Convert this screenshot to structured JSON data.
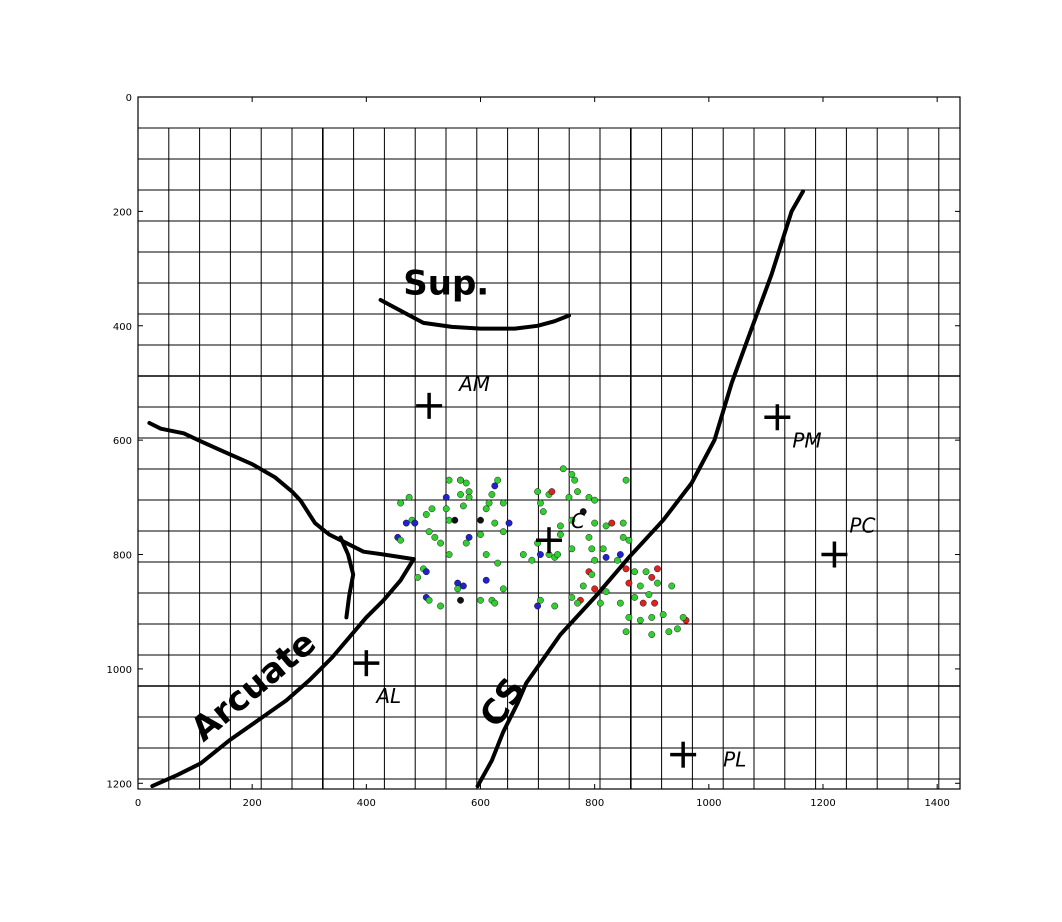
{
  "axes": {
    "x_ticks": [
      "0",
      "200",
      "400",
      "600",
      "800",
      "1000",
      "1200",
      "1400"
    ],
    "y_ticks": [
      "0",
      "200",
      "400",
      "600",
      "800",
      "1000",
      "1200"
    ],
    "xlim": [
      0,
      1440
    ],
    "ylim": [
      0,
      1210
    ],
    "y_inverted": true,
    "grid": true
  },
  "sulci": [
    {
      "label": "Sup.",
      "points": [
        [
          425,
          355
        ],
        [
          500,
          395
        ],
        [
          550,
          402
        ],
        [
          600,
          405
        ],
        [
          660,
          405
        ],
        [
          700,
          400
        ],
        [
          730,
          392
        ],
        [
          755,
          382
        ]
      ]
    },
    {
      "label": "Arcuate",
      "points": [
        [
          25,
          1205
        ],
        [
          70,
          1185
        ],
        [
          110,
          1165
        ],
        [
          160,
          1125
        ],
        [
          210,
          1090
        ],
        [
          260,
          1055
        ],
        [
          300,
          1020
        ],
        [
          340,
          980
        ],
        [
          370,
          945
        ],
        [
          400,
          910
        ],
        [
          430,
          880
        ],
        [
          460,
          845
        ],
        [
          483,
          808
        ]
      ]
    },
    {
      "label": "",
      "points": [
        [
          20,
          570
        ],
        [
          40,
          580
        ],
        [
          80,
          588
        ],
        [
          110,
          602
        ],
        [
          150,
          620
        ],
        [
          200,
          642
        ],
        [
          240,
          665
        ],
        [
          270,
          690
        ],
        [
          285,
          706
        ],
        [
          310,
          745
        ],
        [
          335,
          765
        ],
        [
          365,
          780
        ],
        [
          395,
          795
        ],
        [
          430,
          800
        ],
        [
          483,
          808
        ]
      ]
    },
    {
      "label": "",
      "points": [
        [
          355,
          770
        ],
        [
          368,
          800
        ],
        [
          377,
          835
        ],
        [
          370,
          872
        ],
        [
          365,
          910
        ]
      ]
    },
    {
      "label": "CS",
      "points": [
        [
          595,
          1205
        ],
        [
          620,
          1160
        ],
        [
          640,
          1110
        ],
        [
          665,
          1060
        ],
        [
          680,
          1025
        ],
        [
          740,
          940
        ],
        [
          800,
          875
        ],
        [
          860,
          805
        ],
        [
          920,
          740
        ],
        [
          970,
          675
        ],
        [
          1010,
          600
        ],
        [
          1040,
          500
        ],
        [
          1075,
          405
        ],
        [
          1110,
          310
        ],
        [
          1145,
          200
        ],
        [
          1165,
          165
        ]
      ]
    }
  ],
  "sulcus_labels": [
    {
      "text": "Sup.",
      "x": 540,
      "y": 345,
      "angle": 0
    },
    {
      "text": "Arcuate",
      "x": 215,
      "y": 1045,
      "angle": -40
    },
    {
      "text": "CS",
      "x": 655,
      "y": 1070,
      "angle": -55
    }
  ],
  "sites": [
    {
      "label": "AM",
      "x": 510,
      "y": 540
    },
    {
      "label": "PM",
      "x": 1120,
      "y": 560
    },
    {
      "label": "C",
      "x": 720,
      "y": 775
    },
    {
      "label": "PC",
      "x": 1220,
      "y": 800
    },
    {
      "label": "AL",
      "x": 400,
      "y": 990
    },
    {
      "label": "PL",
      "x": 955,
      "y": 1150
    }
  ],
  "site_label_offsets": {
    "AM": [
      30,
      -15
    ],
    "PM": [
      15,
      30
    ],
    "C": [
      22,
      -12
    ],
    "PC": [
      15,
      -22
    ],
    "AL": [
      10,
      40
    ],
    "PL": [
      40,
      12
    ]
  },
  "point_colors": {
    "green": "#33cc33",
    "blue": "#2222cc",
    "red": "#dd2222",
    "black": "#111111"
  },
  "points": [
    {
      "x": 475,
      "y": 700,
      "c": "green"
    },
    {
      "x": 460,
      "y": 710,
      "c": "green"
    },
    {
      "x": 480,
      "y": 740,
      "c": "green"
    },
    {
      "x": 485,
      "y": 745,
      "c": "blue"
    },
    {
      "x": 470,
      "y": 745,
      "c": "blue"
    },
    {
      "x": 505,
      "y": 730,
      "c": "green"
    },
    {
      "x": 515,
      "y": 720,
      "c": "green"
    },
    {
      "x": 540,
      "y": 720,
      "c": "green"
    },
    {
      "x": 545,
      "y": 740,
      "c": "green"
    },
    {
      "x": 540,
      "y": 700,
      "c": "blue"
    },
    {
      "x": 555,
      "y": 740,
      "c": "black"
    },
    {
      "x": 565,
      "y": 670,
      "c": "blue"
    },
    {
      "x": 565,
      "y": 670,
      "c": "green"
    },
    {
      "x": 575,
      "y": 675,
      "c": "green"
    },
    {
      "x": 580,
      "y": 690,
      "c": "green"
    },
    {
      "x": 580,
      "y": 700,
      "c": "green"
    },
    {
      "x": 565,
      "y": 695,
      "c": "green"
    },
    {
      "x": 570,
      "y": 715,
      "c": "green"
    },
    {
      "x": 545,
      "y": 670,
      "c": "green"
    },
    {
      "x": 600,
      "y": 740,
      "c": "black"
    },
    {
      "x": 610,
      "y": 720,
      "c": "green"
    },
    {
      "x": 615,
      "y": 710,
      "c": "green"
    },
    {
      "x": 620,
      "y": 695,
      "c": "green"
    },
    {
      "x": 625,
      "y": 680,
      "c": "blue"
    },
    {
      "x": 630,
      "y": 670,
      "c": "green"
    },
    {
      "x": 625,
      "y": 745,
      "c": "green"
    },
    {
      "x": 640,
      "y": 710,
      "c": "green"
    },
    {
      "x": 650,
      "y": 745,
      "c": "blue"
    },
    {
      "x": 640,
      "y": 760,
      "c": "green"
    },
    {
      "x": 600,
      "y": 765,
      "c": "green"
    },
    {
      "x": 455,
      "y": 770,
      "c": "blue"
    },
    {
      "x": 460,
      "y": 775,
      "c": "green"
    },
    {
      "x": 510,
      "y": 760,
      "c": "green"
    },
    {
      "x": 520,
      "y": 770,
      "c": "green"
    },
    {
      "x": 530,
      "y": 780,
      "c": "green"
    },
    {
      "x": 580,
      "y": 770,
      "c": "blue"
    },
    {
      "x": 575,
      "y": 780,
      "c": "green"
    },
    {
      "x": 610,
      "y": 800,
      "c": "green"
    },
    {
      "x": 630,
      "y": 815,
      "c": "green"
    },
    {
      "x": 545,
      "y": 800,
      "c": "green"
    },
    {
      "x": 500,
      "y": 825,
      "c": "green"
    },
    {
      "x": 505,
      "y": 830,
      "c": "blue"
    },
    {
      "x": 560,
      "y": 850,
      "c": "blue"
    },
    {
      "x": 570,
      "y": 855,
      "c": "blue"
    },
    {
      "x": 560,
      "y": 860,
      "c": "green"
    },
    {
      "x": 610,
      "y": 845,
      "c": "blue"
    },
    {
      "x": 620,
      "y": 880,
      "c": "green"
    },
    {
      "x": 625,
      "y": 885,
      "c": "green"
    },
    {
      "x": 565,
      "y": 880,
      "c": "black"
    },
    {
      "x": 505,
      "y": 875,
      "c": "blue"
    },
    {
      "x": 510,
      "y": 880,
      "c": "green"
    },
    {
      "x": 530,
      "y": 890,
      "c": "green"
    },
    {
      "x": 490,
      "y": 840,
      "c": "green"
    },
    {
      "x": 675,
      "y": 800,
      "c": "green"
    },
    {
      "x": 690,
      "y": 810,
      "c": "green"
    },
    {
      "x": 700,
      "y": 690,
      "c": "green"
    },
    {
      "x": 720,
      "y": 695,
      "c": "green"
    },
    {
      "x": 725,
      "y": 690,
      "c": "red"
    },
    {
      "x": 705,
      "y": 710,
      "c": "green"
    },
    {
      "x": 710,
      "y": 725,
      "c": "green"
    },
    {
      "x": 745,
      "y": 650,
      "c": "green"
    },
    {
      "x": 760,
      "y": 660,
      "c": "green"
    },
    {
      "x": 765,
      "y": 670,
      "c": "green"
    },
    {
      "x": 755,
      "y": 700,
      "c": "green"
    },
    {
      "x": 770,
      "y": 690,
      "c": "green"
    },
    {
      "x": 790,
      "y": 700,
      "c": "green"
    },
    {
      "x": 800,
      "y": 705,
      "c": "green"
    },
    {
      "x": 780,
      "y": 725,
      "c": "black"
    },
    {
      "x": 760,
      "y": 740,
      "c": "green"
    },
    {
      "x": 800,
      "y": 745,
      "c": "green"
    },
    {
      "x": 820,
      "y": 750,
      "c": "green"
    },
    {
      "x": 830,
      "y": 745,
      "c": "red"
    },
    {
      "x": 850,
      "y": 745,
      "c": "green"
    },
    {
      "x": 855,
      "y": 670,
      "c": "green"
    },
    {
      "x": 740,
      "y": 750,
      "c": "green"
    },
    {
      "x": 740,
      "y": 765,
      "c": "green"
    },
    {
      "x": 790,
      "y": 770,
      "c": "green"
    },
    {
      "x": 795,
      "y": 790,
      "c": "green"
    },
    {
      "x": 815,
      "y": 790,
      "c": "green"
    },
    {
      "x": 760,
      "y": 790,
      "c": "green"
    },
    {
      "x": 705,
      "y": 800,
      "c": "blue"
    },
    {
      "x": 720,
      "y": 800,
      "c": "green"
    },
    {
      "x": 730,
      "y": 805,
      "c": "green"
    },
    {
      "x": 735,
      "y": 800,
      "c": "green"
    },
    {
      "x": 700,
      "y": 780,
      "c": "green"
    },
    {
      "x": 820,
      "y": 805,
      "c": "blue"
    },
    {
      "x": 800,
      "y": 810,
      "c": "green"
    },
    {
      "x": 840,
      "y": 810,
      "c": "green"
    },
    {
      "x": 850,
      "y": 770,
      "c": "green"
    },
    {
      "x": 860,
      "y": 775,
      "c": "green"
    },
    {
      "x": 845,
      "y": 800,
      "c": "blue"
    },
    {
      "x": 790,
      "y": 830,
      "c": "red"
    },
    {
      "x": 795,
      "y": 835,
      "c": "green"
    },
    {
      "x": 780,
      "y": 855,
      "c": "green"
    },
    {
      "x": 800,
      "y": 860,
      "c": "red"
    },
    {
      "x": 820,
      "y": 865,
      "c": "green"
    },
    {
      "x": 855,
      "y": 825,
      "c": "red"
    },
    {
      "x": 860,
      "y": 850,
      "c": "red"
    },
    {
      "x": 870,
      "y": 830,
      "c": "green"
    },
    {
      "x": 890,
      "y": 830,
      "c": "green"
    },
    {
      "x": 900,
      "y": 840,
      "c": "red"
    },
    {
      "x": 910,
      "y": 825,
      "c": "red"
    },
    {
      "x": 880,
      "y": 855,
      "c": "green"
    },
    {
      "x": 910,
      "y": 850,
      "c": "green"
    },
    {
      "x": 935,
      "y": 855,
      "c": "green"
    },
    {
      "x": 895,
      "y": 870,
      "c": "green"
    },
    {
      "x": 870,
      "y": 875,
      "c": "green"
    },
    {
      "x": 885,
      "y": 885,
      "c": "red"
    },
    {
      "x": 905,
      "y": 885,
      "c": "red"
    },
    {
      "x": 845,
      "y": 885,
      "c": "green"
    },
    {
      "x": 810,
      "y": 885,
      "c": "green"
    },
    {
      "x": 775,
      "y": 880,
      "c": "red"
    },
    {
      "x": 770,
      "y": 885,
      "c": "green"
    },
    {
      "x": 760,
      "y": 875,
      "c": "green"
    },
    {
      "x": 700,
      "y": 890,
      "c": "blue"
    },
    {
      "x": 705,
      "y": 880,
      "c": "green"
    },
    {
      "x": 730,
      "y": 890,
      "c": "green"
    },
    {
      "x": 860,
      "y": 910,
      "c": "green"
    },
    {
      "x": 880,
      "y": 915,
      "c": "green"
    },
    {
      "x": 900,
      "y": 910,
      "c": "green"
    },
    {
      "x": 920,
      "y": 905,
      "c": "green"
    },
    {
      "x": 960,
      "y": 915,
      "c": "red"
    },
    {
      "x": 955,
      "y": 910,
      "c": "green"
    },
    {
      "x": 945,
      "y": 930,
      "c": "green"
    },
    {
      "x": 930,
      "y": 935,
      "c": "green"
    },
    {
      "x": 900,
      "y": 940,
      "c": "green"
    },
    {
      "x": 855,
      "y": 935,
      "c": "green"
    },
    {
      "x": 600,
      "y": 880,
      "c": "green"
    },
    {
      "x": 640,
      "y": 860,
      "c": "green"
    }
  ]
}
